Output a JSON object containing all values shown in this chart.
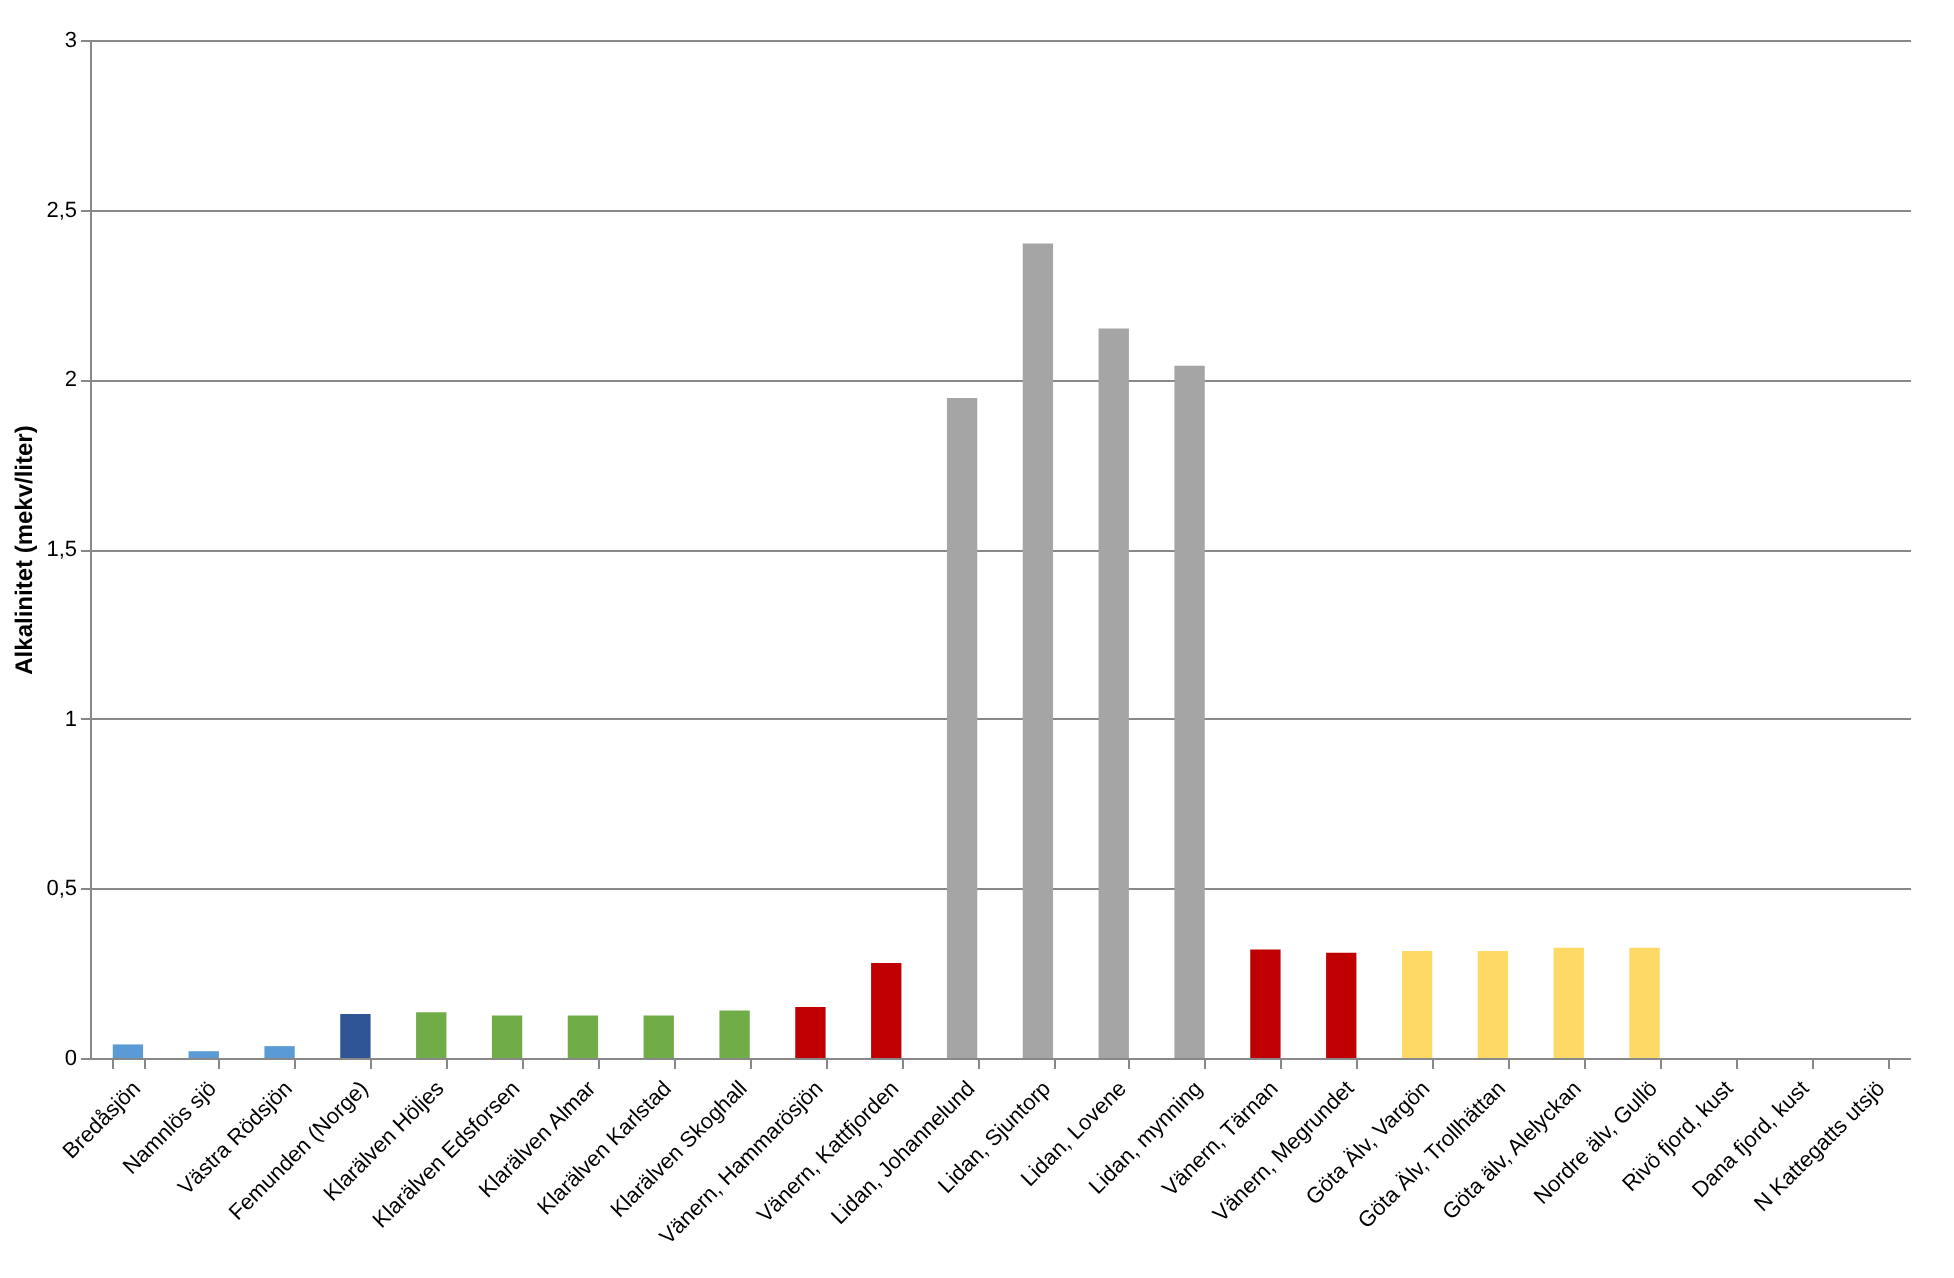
{
  "chart_data": {
    "type": "bar",
    "ylabel": "Alkalinitet (mekv/liter)",
    "categories": [
      "Bredåsjön",
      "Namnlös sjö",
      "Västra Rödsjön",
      "Femunden (Norge)",
      "Klarälven Höljes",
      "Klarälven Edsforsen",
      "Klarälven Almar",
      "Klarälven Karlstad",
      "Klarälven Skoghall",
      "Vänern, Hammarösjön",
      "Vänern, Kattfjorden",
      "Lidan, Johannelund",
      "Lidan, Sjuntorp",
      "Lidan, Lovene",
      "Lidan, mynning",
      "Vänern, Tärnan",
      "Vänern, Megrundet",
      "Göta Älv, Vargön",
      "Göta Älv, Trollhättan",
      "Göta älv, Alelyckan",
      "Nordre älv, Gullö",
      "Rivö fjord, kust",
      "Dana fjord, kust",
      "N Kattegatts utsjö"
    ],
    "values": [
      0.04,
      0.02,
      0.035,
      0.13,
      0.135,
      0.125,
      0.125,
      0.125,
      0.14,
      0.15,
      0.28,
      1.945,
      2.4,
      2.15,
      2.04,
      0.32,
      0.31,
      0.315,
      0.315,
      0.325,
      0.325,
      null,
      null,
      null
    ],
    "colors": [
      "#5b9bd5",
      "#5b9bd5",
      "#5b9bd5",
      "#2f5597",
      "#70ad47",
      "#70ad47",
      "#70ad47",
      "#70ad47",
      "#70ad47",
      "#c00000",
      "#c00000",
      "#a5a5a5",
      "#a5a5a5",
      "#a5a5a5",
      "#a5a5a5",
      "#c00000",
      "#c00000",
      "#ffd966",
      "#ffd966",
      "#ffd966",
      "#ffd966",
      "#ffd966",
      "#ffd966",
      "#ffd966"
    ],
    "ylim": [
      0,
      3
    ],
    "yticks": [
      0,
      {
        "value": 0.5,
        "label": "0,5"
      },
      1,
      {
        "value": 1.5,
        "label": "1,5"
      },
      2,
      {
        "value": 2.5,
        "label": "2,5"
      },
      3
    ],
    "grid": "y"
  }
}
